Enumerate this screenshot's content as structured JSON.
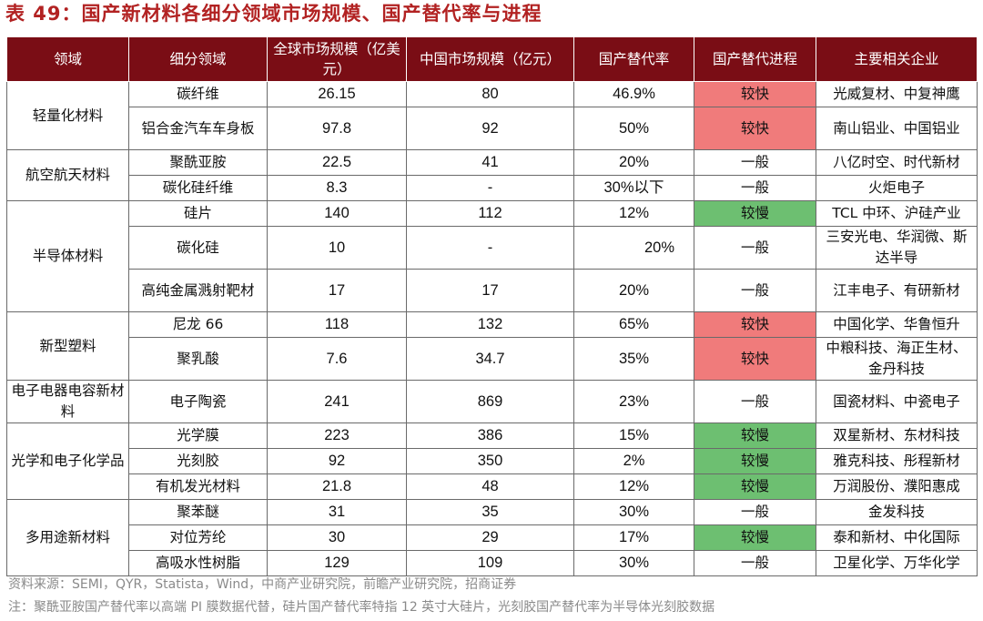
{
  "title": "表 49：国产新材料各细分领域市场规模、国产替代率与进程",
  "headers": [
    "领域",
    "细分领域",
    "全球市场规模（亿美元）",
    "中国市场规模（亿元）",
    "国产替代率",
    "国产替代进程",
    "主要相关企业"
  ],
  "rows": [
    {
      "domain": "轻量化材料",
      "sub": "碳纤维",
      "global": "26.15",
      "china": "80",
      "rate": "46.9%",
      "progress": "较快",
      "companies": "光威复材、中复神鹰"
    },
    {
      "sub": "铝合金汽车车身板",
      "global": "97.8",
      "china": "92",
      "rate": "50%",
      "progress": "较快",
      "companies": "南山铝业、中国铝业"
    },
    {
      "domain": "航空航天材料",
      "sub": "聚酰亚胺",
      "global": "22.5",
      "china": "41",
      "rate": "20%",
      "progress": "一般",
      "companies": "八亿时空、时代新材"
    },
    {
      "sub": "碳化硅纤维",
      "global": "8.3",
      "china": "-",
      "rate": "30%以下",
      "progress": "一般",
      "companies": "火炬电子"
    },
    {
      "domain": "半导体材料",
      "sub": "硅片",
      "global": "140",
      "china": "112",
      "rate": "12%",
      "progress": "较慢",
      "companies": "TCL 中环、沪硅产业"
    },
    {
      "sub": "碳化硅",
      "global": "10",
      "china": "-",
      "rate": "20%",
      "progress": "一般",
      "companies": "三安光电、华润微、斯达半导"
    },
    {
      "sub": "高纯金属溅射靶材",
      "global": "17",
      "china": "17",
      "rate": "20%",
      "progress": "一般",
      "companies": "江丰电子、有研新材"
    },
    {
      "domain": "新型塑料",
      "sub": "尼龙 66",
      "global": "118",
      "china": "132",
      "rate": "65%",
      "progress": "较快",
      "companies": "中国化学、华鲁恒升"
    },
    {
      "sub": "聚乳酸",
      "global": "7.6",
      "china": "34.7",
      "rate": "35%",
      "progress": "较快",
      "companies": "中粮科技、海正生材、金丹科技"
    },
    {
      "domain": "电子电器电容新材料",
      "sub": "电子陶瓷",
      "global": "241",
      "china": "869",
      "rate": "23%",
      "progress": "一般",
      "companies": "国瓷材料、中瓷电子"
    },
    {
      "domain": "光学和电子化学品",
      "sub": "光学膜",
      "global": "223",
      "china": "386",
      "rate": "15%",
      "progress": "较慢",
      "companies": "双星新材、东材科技"
    },
    {
      "sub": "光刻胶",
      "global": "92",
      "china": "350",
      "rate": "2%",
      "progress": "较慢",
      "companies": "雅克科技、彤程新材"
    },
    {
      "sub": "有机发光材料",
      "global": "21.8",
      "china": "48",
      "rate": "12%",
      "progress": "较慢",
      "companies": "万润股份、濮阳惠成"
    },
    {
      "domain": "多用途新材料",
      "sub": "聚苯醚",
      "global": "31",
      "china": "35",
      "rate": "30%",
      "progress": "一般",
      "companies": "金发科技"
    },
    {
      "sub": "对位芳纶",
      "global": "30",
      "china": "29",
      "rate": "17%",
      "progress": "较慢",
      "companies": "泰和新材、中化国际"
    },
    {
      "sub": "高吸水性树脂",
      "global": "129",
      "china": "109",
      "rate": "30%",
      "progress": "一般",
      "companies": "卫星化学、万华化学"
    }
  ],
  "source": "资料来源：SEMI，QYR，Statista，Wind，中商产业研究院，前瞻产业研究院，招商证券",
  "note": "注：聚酰亚胺国产替代率以高端 PI 膜数据代替，硅片国产替代率特指 12 英寸大硅片，光刻胶国产替代率为半导体光刻胶数据",
  "colors": {
    "header_bg": "#7a0d15",
    "fast": "#f07b7b",
    "slow": "#6dbf71",
    "title": "#b22222"
  }
}
